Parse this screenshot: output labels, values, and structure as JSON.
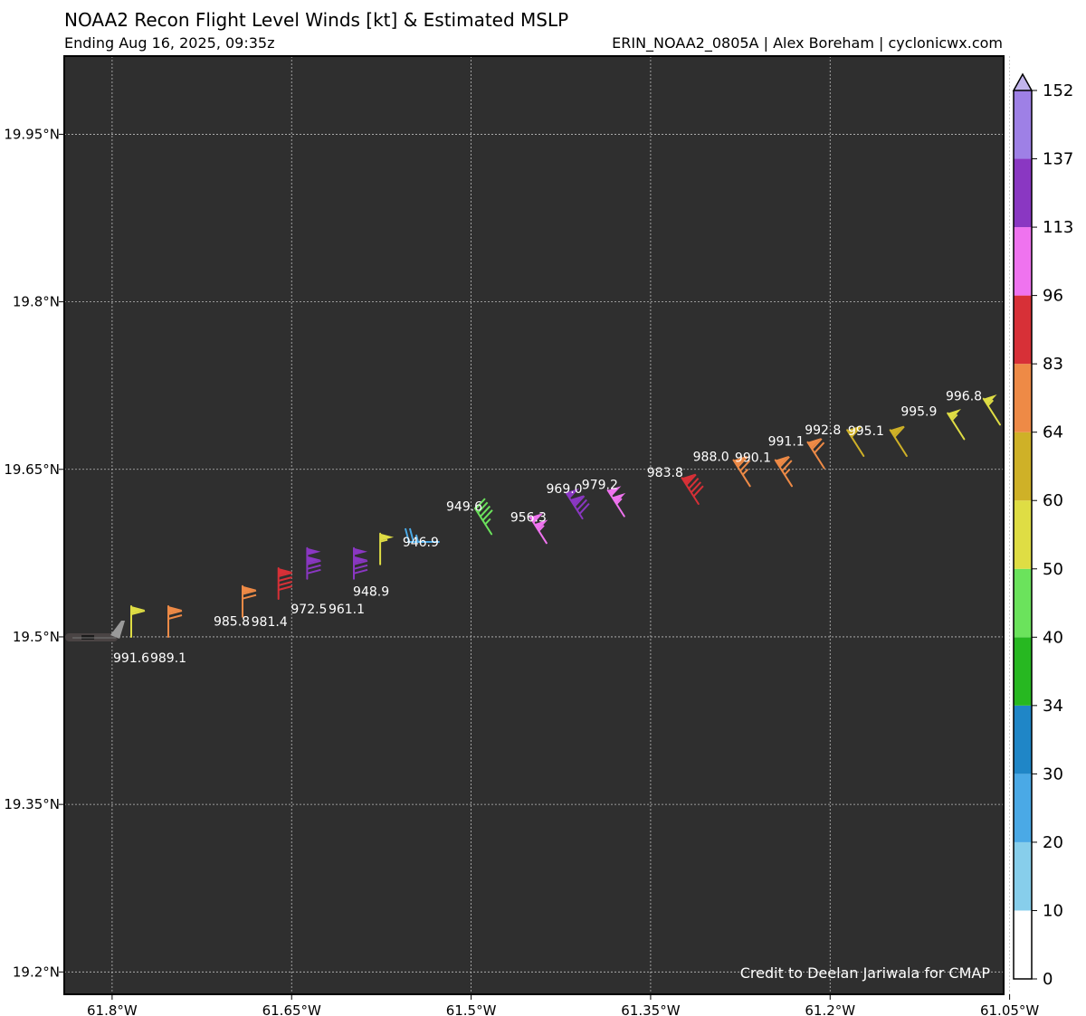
{
  "header": {
    "title": "NOAA2 Recon Flight Level Winds [kt] & Estimated MSLP",
    "subtitle": "Ending Aug 16, 2025, 09:35z",
    "credit": "ERIN_NOAA2_0805A | Alex Boreham | cyclonicwx.com"
  },
  "map": {
    "credit_text": "Credit to Deelan Jariwala for CMAP",
    "background": "#2f2f2f",
    "lon_range": [
      -61.84,
      -61.055
    ],
    "lat_range": [
      19.18,
      20.02
    ]
  },
  "chart_data": {
    "type": "scatter",
    "title": "NOAA2 Recon Flight Level Winds [kt] & Estimated MSLP",
    "x_ticks": [
      {
        "value": -61.8,
        "label": "61.8°W"
      },
      {
        "value": -61.65,
        "label": "61.65°W"
      },
      {
        "value": -61.5,
        "label": "61.5°W"
      },
      {
        "value": -61.35,
        "label": "61.35°W"
      },
      {
        "value": -61.2,
        "label": "61.2°W"
      },
      {
        "value": -61.05,
        "label": "61.05°W"
      }
    ],
    "y_ticks": [
      {
        "value": 19.95,
        "label": "19.95°N"
      },
      {
        "value": 19.8,
        "label": "19.8°N"
      },
      {
        "value": 19.65,
        "label": "19.65°N"
      },
      {
        "value": 19.5,
        "label": "19.5°N"
      },
      {
        "value": 19.35,
        "label": "19.35°N"
      },
      {
        "value": 19.2,
        "label": "19.2°N"
      }
    ],
    "grid": true,
    "observations": [
      {
        "lon": -61.784,
        "lat": 19.5,
        "pressure": "991.6",
        "wind_kt": 58,
        "dir": "N"
      },
      {
        "lon": -61.753,
        "lat": 19.5,
        "pressure": "989.1",
        "wind_kt": 70,
        "dir": "N"
      },
      {
        "lon": -61.691,
        "lat": 19.518,
        "pressure": "985.8",
        "wind_kt": 72,
        "dir": "N"
      },
      {
        "lon": -61.661,
        "lat": 19.534,
        "pressure": "981.4",
        "wind_kt": 90,
        "dir": "N"
      },
      {
        "lon": -61.637,
        "lat": 19.552,
        "pressure": "972.5",
        "wind_kt": 130,
        "dir": "N"
      },
      {
        "lon": -61.598,
        "lat": 19.552,
        "pressure": "961.1",
        "wind_kt": 130,
        "dir": "N"
      },
      {
        "lon": -61.576,
        "lat": 19.565,
        "pressure": "948.9",
        "wind_kt": 55,
        "dir": "N"
      },
      {
        "lon": -61.527,
        "lat": 19.585,
        "pressure": "946.9",
        "wind_kt": 25,
        "dir": "W"
      },
      {
        "lon": -61.483,
        "lat": 19.592,
        "pressure": "949.6",
        "wind_kt": 45,
        "dir": "NW"
      },
      {
        "lon": -61.437,
        "lat": 19.584,
        "pressure": "956.3",
        "wind_kt": 105,
        "dir": "NW"
      },
      {
        "lon": -61.407,
        "lat": 19.606,
        "pressure": "969.0",
        "wind_kt": 130,
        "dir": "NW"
      },
      {
        "lon": -61.372,
        "lat": 19.608,
        "pressure": "979.2",
        "wind_kt": 105,
        "dir": "NW"
      },
      {
        "lon": -61.31,
        "lat": 19.619,
        "pressure": "983.8",
        "wind_kt": 90,
        "dir": "NW"
      },
      {
        "lon": -61.267,
        "lat": 19.635,
        "pressure": "988.0",
        "wind_kt": 75,
        "dir": "NW"
      },
      {
        "lon": -61.232,
        "lat": 19.635,
        "pressure": "990.1",
        "wind_kt": 75,
        "dir": "NW"
      },
      {
        "lon": -61.205,
        "lat": 19.651,
        "pressure": "991.1",
        "wind_kt": 70,
        "dir": "NW"
      },
      {
        "lon": -61.172,
        "lat": 19.662,
        "pressure": "992.8",
        "wind_kt": 62,
        "dir": "NW"
      },
      {
        "lon": -61.136,
        "lat": 19.662,
        "pressure": "995.1",
        "wind_kt": 62,
        "dir": "NW"
      },
      {
        "lon": -61.088,
        "lat": 19.677,
        "pressure": "995.9",
        "wind_kt": 55,
        "dir": "NW"
      },
      {
        "lon": -61.058,
        "lat": 19.69,
        "pressure": "996.8",
        "wind_kt": 55,
        "dir": "NW"
      }
    ],
    "colorbar": {
      "label_values": [
        "0",
        "10",
        "20",
        "30",
        "34",
        "40",
        "50",
        "60",
        "64",
        "83",
        "96",
        "113",
        "137",
        "152"
      ],
      "colors": [
        "#ffffff",
        "#87ceeb",
        "#4aa9e6",
        "#1f86c7",
        "#27b821",
        "#6be35c",
        "#dfdd44",
        "#cfb127",
        "#ee8a46",
        "#d73037",
        "#ef73ef",
        "#8a37c2",
        "#9e80e6"
      ],
      "extend_color": "#c1b4ec"
    }
  }
}
